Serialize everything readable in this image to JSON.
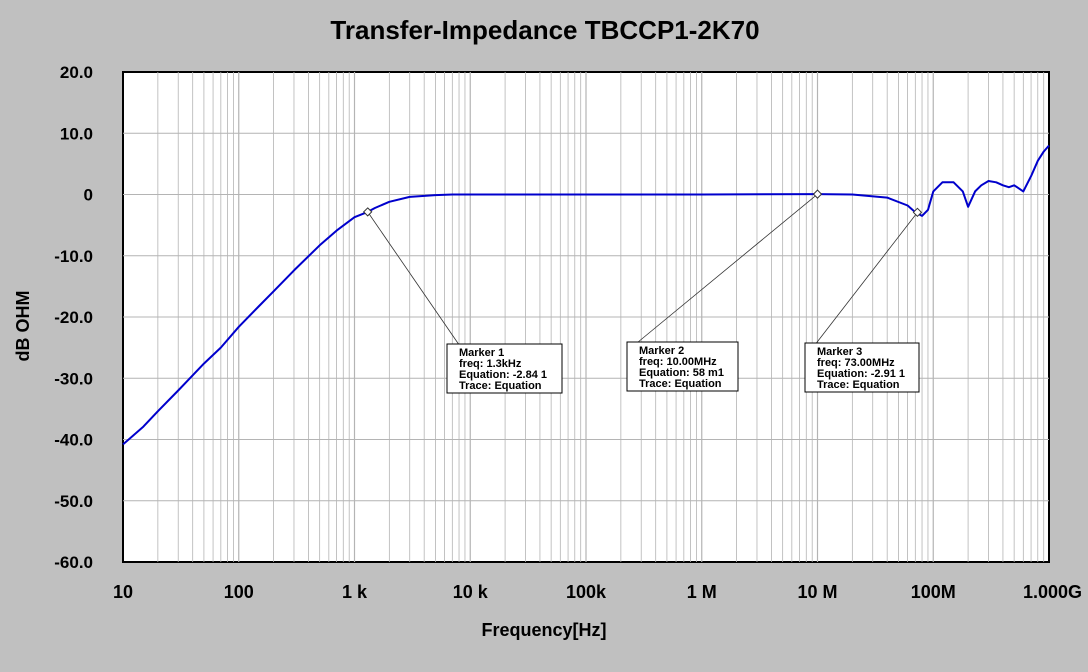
{
  "chart_data": {
    "type": "line",
    "title": "Transfer-Impedance TBCCP1-2K70",
    "xlabel": "Frequency[Hz]",
    "ylabel": "dB OHM",
    "x_scale": "log",
    "xlim": [
      10,
      1000000000
    ],
    "ylim": [
      -60,
      20
    ],
    "grid": true,
    "x_ticks": [
      {
        "value": 10,
        "label": "10"
      },
      {
        "value": 100,
        "label": "100"
      },
      {
        "value": 1000,
        "label": "1  k"
      },
      {
        "value": 10000,
        "label": "10 k"
      },
      {
        "value": 100000,
        "label": "100k"
      },
      {
        "value": 1000000,
        "label": "1  M"
      },
      {
        "value": 10000000,
        "label": "10 M"
      },
      {
        "value": 100000000,
        "label": "100M"
      },
      {
        "value": 1000000000,
        "label": "1.000G"
      }
    ],
    "y_ticks": [
      {
        "value": 20,
        "label": "20.0"
      },
      {
        "value": 10,
        "label": "10.0"
      },
      {
        "value": 0,
        "label": "0"
      },
      {
        "value": -10,
        "label": "-10.0"
      },
      {
        "value": -20,
        "label": "-20.0"
      },
      {
        "value": -30,
        "label": "-30.0"
      },
      {
        "value": -40,
        "label": "-40.0"
      },
      {
        "value": -50,
        "label": "-50.0"
      },
      {
        "value": -60,
        "label": "-60.0"
      }
    ],
    "series": [
      {
        "color": "#0000cc",
        "x": [
          10,
          15,
          20,
          30,
          50,
          70,
          100,
          150,
          200,
          300,
          500,
          700,
          1000,
          1300,
          1500,
          2000,
          3000,
          5000,
          7000,
          10000,
          100000,
          1000000,
          10000000,
          20000000,
          40000000,
          60000000,
          70000000,
          80000000,
          90000000,
          100000000,
          120000000,
          150000000,
          180000000,
          200000000,
          230000000,
          260000000,
          300000000,
          350000000,
          400000000,
          450000000,
          500000000,
          550000000,
          600000000,
          700000000,
          800000000,
          900000000,
          1000000000
        ],
        "y": [
          -40.8,
          -37.9,
          -35.4,
          -32.0,
          -27.6,
          -25.0,
          -21.6,
          -18.2,
          -15.8,
          -12.4,
          -8.3,
          -5.9,
          -3.7,
          -2.84,
          -2.2,
          -1.2,
          -0.4,
          -0.1,
          0.0,
          0.0,
          0.0,
          0.0,
          0.06,
          0.0,
          -0.5,
          -1.8,
          -2.91,
          -3.5,
          -2.5,
          0.5,
          2.0,
          2.0,
          0.5,
          -2.0,
          0.5,
          1.5,
          2.2,
          2.0,
          1.5,
          1.2,
          1.5,
          1.0,
          0.5,
          3.0,
          5.5,
          7.0,
          8.0
        ]
      }
    ],
    "markers": [
      {
        "x": 1300,
        "y": -2.84,
        "lines": [
          "Marker 1",
          "freq: 1.3kHz",
          "Equation: -2.84 1",
          "Trace: Equation"
        ]
      },
      {
        "x": 10000000,
        "y": 0.06,
        "lines": [
          "Marker 2",
          "freq: 10.00MHz",
          "Equation: 58 m1",
          "Trace: Equation"
        ]
      },
      {
        "x": 73000000,
        "y": -2.91,
        "lines": [
          "Marker 3",
          "freq: 73.00MHz",
          "Equation: -2.91 1",
          "Trace: Equation"
        ]
      }
    ],
    "colors": {
      "background": "#c0c0c0",
      "plot_area": "#ffffff",
      "grid": "#b4b4b4",
      "trace": "#0000cc"
    }
  }
}
